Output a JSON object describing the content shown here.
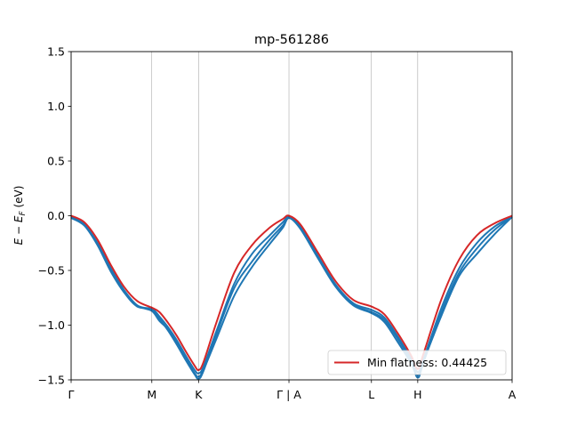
{
  "chart_data": {
    "type": "line",
    "title": "mp-561286",
    "ylabel": "E − E_F (eV)",
    "ylabel_parts": {
      "prefix": "E − E",
      "sub": "F",
      "suffix": " (eV)"
    },
    "xlabel": "",
    "ylim": [
      -1.5,
      1.5
    ],
    "yticks": [
      -1.5,
      -1.0,
      -0.5,
      0.0,
      0.5,
      1.0,
      1.5
    ],
    "ytick_labels": [
      "−1.5",
      "−1.0",
      "−0.5",
      "0.0",
      "0.5",
      "1.0",
      "1.5"
    ],
    "xlim": [
      0,
      10
    ],
    "kpoints": [
      {
        "label": "Γ",
        "x": 0
      },
      {
        "label": "M",
        "x": 1.83
      },
      {
        "label": "K",
        "x": 2.89
      },
      {
        "label": "Γ | A",
        "x": 4.94
      },
      {
        "label": "L",
        "x": 6.81
      },
      {
        "label": "H",
        "x": 7.86
      },
      {
        "label": "A",
        "x": 10
      }
    ],
    "series": [
      {
        "color": "#1f77b4",
        "x": [
          0,
          0.3,
          0.6,
          0.9,
          1.2,
          1.5,
          1.83,
          2.0,
          2.2,
          2.4,
          2.6,
          2.8,
          2.89,
          3.0,
          3.3,
          3.7,
          4.1,
          4.5,
          4.8,
          4.94,
          5.2,
          5.6,
          6.0,
          6.4,
          6.81,
          7.1,
          7.4,
          7.7,
          7.86,
          8.0,
          8.4,
          8.8,
          9.2,
          9.6,
          10
        ],
        "y": [
          -0.01,
          -0.08,
          -0.25,
          -0.48,
          -0.68,
          -0.82,
          -0.87,
          -0.96,
          -1.04,
          -1.16,
          -1.3,
          -1.44,
          -1.47,
          -1.41,
          -1.12,
          -0.73,
          -0.47,
          -0.26,
          -0.11,
          -0.02,
          -0.12,
          -0.39,
          -0.65,
          -0.82,
          -0.89,
          -0.97,
          -1.15,
          -1.34,
          -1.46,
          -1.32,
          -0.91,
          -0.55,
          -0.35,
          -0.17,
          -0.01
        ]
      },
      {
        "color": "#1f77b4",
        "x": [
          0,
          0.3,
          0.6,
          0.9,
          1.2,
          1.5,
          1.83,
          2.0,
          2.2,
          2.4,
          2.6,
          2.8,
          2.89,
          3.0,
          3.3,
          3.7,
          4.1,
          4.5,
          4.8,
          4.94,
          5.2,
          5.6,
          6.0,
          6.4,
          6.81,
          7.1,
          7.4,
          7.7,
          7.86,
          8.0,
          8.4,
          8.8,
          9.2,
          9.6,
          10
        ],
        "y": [
          -0.02,
          -0.09,
          -0.27,
          -0.51,
          -0.7,
          -0.83,
          -0.85,
          -0.92,
          -1.02,
          -1.14,
          -1.28,
          -1.41,
          -1.44,
          -1.38,
          -1.05,
          -0.62,
          -0.35,
          -0.18,
          -0.06,
          -0.01,
          -0.1,
          -0.37,
          -0.63,
          -0.8,
          -0.86,
          -0.93,
          -1.1,
          -1.3,
          -1.43,
          -1.3,
          -0.84,
          -0.48,
          -0.25,
          -0.1,
          -0.01
        ]
      },
      {
        "color": "#1f77b4",
        "x": [
          0,
          0.3,
          0.6,
          0.9,
          1.2,
          1.5,
          1.83,
          2.0,
          2.2,
          2.4,
          2.6,
          2.8,
          2.89,
          3.0,
          3.3,
          3.7,
          4.1,
          4.5,
          4.8,
          4.94,
          5.2,
          5.6,
          6.0,
          6.4,
          6.81,
          7.1,
          7.4,
          7.7,
          7.86,
          8.0,
          8.4,
          8.8,
          9.2,
          9.6,
          10
        ],
        "y": [
          -0.01,
          -0.08,
          -0.26,
          -0.49,
          -0.69,
          -0.82,
          -0.86,
          -0.94,
          -1.05,
          -1.18,
          -1.32,
          -1.45,
          -1.49,
          -1.42,
          -1.08,
          -0.66,
          -0.42,
          -0.22,
          -0.09,
          -0.02,
          -0.11,
          -0.38,
          -0.64,
          -0.81,
          -0.88,
          -0.95,
          -1.12,
          -1.32,
          -1.48,
          -1.33,
          -0.88,
          -0.52,
          -0.3,
          -0.13,
          -0.01
        ]
      },
      {
        "name": "Min flatness: 0.44425",
        "color": "#d62728",
        "x": [
          0,
          0.3,
          0.6,
          0.9,
          1.2,
          1.5,
          1.83,
          2.0,
          2.2,
          2.4,
          2.6,
          2.8,
          2.89,
          3.0,
          3.3,
          3.7,
          4.1,
          4.5,
          4.8,
          4.94,
          5.2,
          5.6,
          6.0,
          6.4,
          6.81,
          7.1,
          7.4,
          7.7,
          7.86,
          8.0,
          8.4,
          8.8,
          9.2,
          9.6,
          10
        ],
        "y": [
          0.0,
          -0.06,
          -0.22,
          -0.45,
          -0.65,
          -0.78,
          -0.84,
          -0.88,
          -0.98,
          -1.1,
          -1.24,
          -1.37,
          -1.41,
          -1.34,
          -0.97,
          -0.52,
          -0.27,
          -0.11,
          -0.03,
          0.0,
          -0.08,
          -0.34,
          -0.6,
          -0.77,
          -0.83,
          -0.9,
          -1.07,
          -1.27,
          -1.4,
          -1.25,
          -0.76,
          -0.4,
          -0.18,
          -0.07,
          0.0
        ]
      }
    ],
    "legend_position": "lower-right",
    "grid": false
  }
}
